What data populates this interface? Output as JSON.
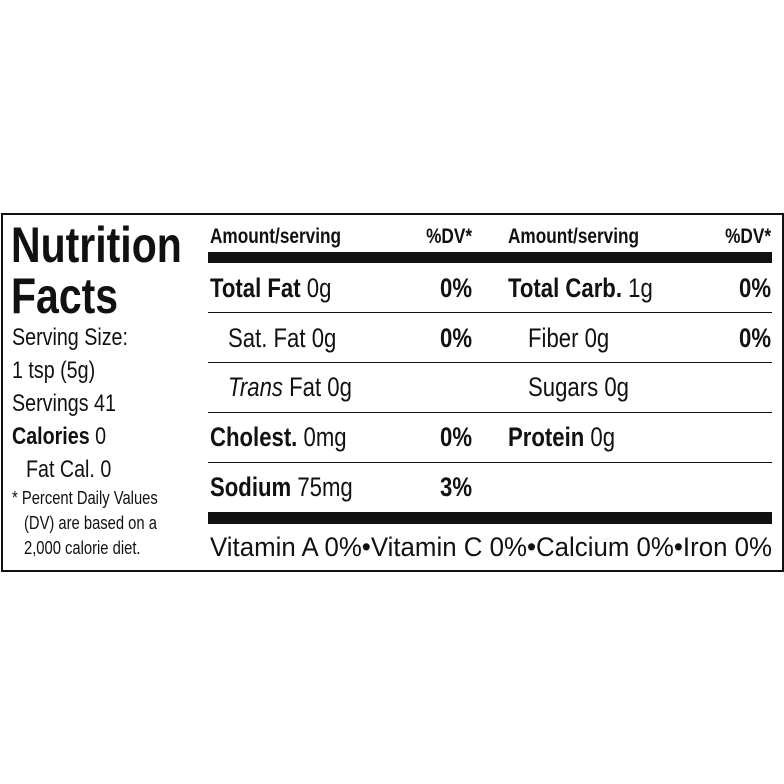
{
  "label": {
    "title": [
      "Nutrition",
      "Facts"
    ],
    "serving_size_label": "Serving Size:",
    "serving_size": "1 tsp (5g)",
    "servings": "Servings 41",
    "calories_label": "Calories",
    "calories": "0",
    "fat_calories": "Fat Cal. 0",
    "footnote": [
      "* Percent Daily Values",
      "(DV) are based on a",
      "2,000 calorie diet."
    ]
  },
  "header": [
    {
      "amount": "Amount/serving",
      "dv": "%DV*"
    },
    {
      "amount": "Amount/serving",
      "dv": "%DV*"
    }
  ],
  "rows": {
    "left": [
      {
        "name": "Total Fat",
        "amount": "0g",
        "dv": "0%"
      },
      {
        "name": "Sat. Fat",
        "amount": "0g",
        "dv": "0%"
      },
      {
        "name_italic": "Trans",
        "name": "Fat",
        "amount": "0g"
      },
      {
        "name": "Cholest.",
        "amount": "0mg",
        "dv": "0%"
      },
      {
        "name": "Sodium",
        "amount": "75mg",
        "dv": "3%"
      }
    ],
    "right": [
      {
        "name": "Total Carb.",
        "amount": "1g",
        "dv": "0%"
      },
      {
        "name": "Fiber",
        "amount": "0g",
        "dv": "0%"
      },
      {
        "name": "Sugars",
        "amount": "0g"
      },
      {
        "name": "Protein",
        "amount": "0g"
      }
    ]
  },
  "vitamins": "Vitamin A 0%•Vitamin C 0%•Calcium 0%•Iron 0%"
}
